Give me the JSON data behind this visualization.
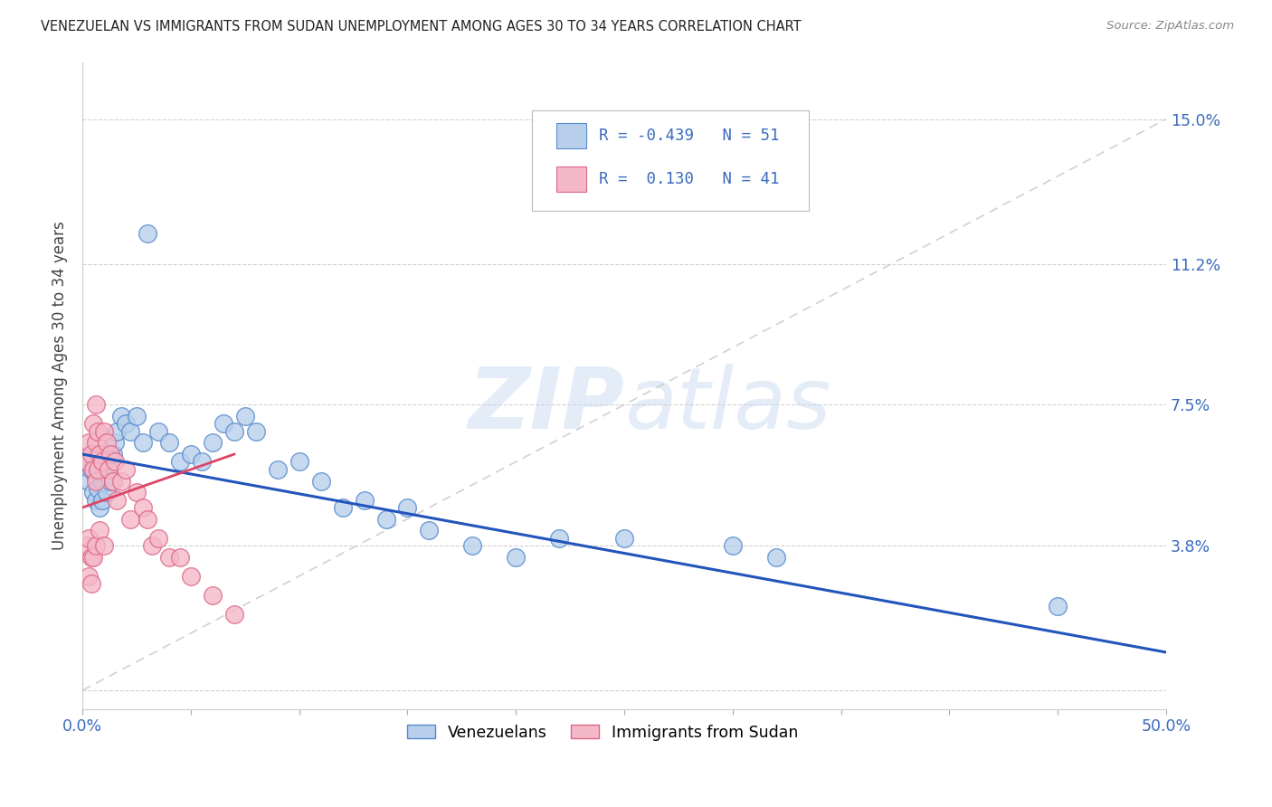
{
  "title": "VENEZUELAN VS IMMIGRANTS FROM SUDAN UNEMPLOYMENT AMONG AGES 30 TO 34 YEARS CORRELATION CHART",
  "source": "Source: ZipAtlas.com",
  "ylabel": "Unemployment Among Ages 30 to 34 years",
  "xlim": [
    0.0,
    0.5
  ],
  "ylim": [
    -0.005,
    0.165
  ],
  "yticks": [
    0.0,
    0.038,
    0.075,
    0.112,
    0.15
  ],
  "ytick_labels": [
    "",
    "3.8%",
    "7.5%",
    "11.2%",
    "15.0%"
  ],
  "xticks": [
    0.0,
    0.05,
    0.1,
    0.15,
    0.2,
    0.25,
    0.3,
    0.35,
    0.4,
    0.45,
    0.5
  ],
  "xtick_labels": [
    "0.0%",
    "",
    "",
    "",
    "",
    "",
    "",
    "",
    "",
    "",
    "50.0%"
  ],
  "venezuelan_color": "#b8d0eb",
  "sudan_color": "#f5b8c8",
  "venezuelan_edge": "#5588cc",
  "sudan_edge": "#dd6688",
  "trend_blue": "#2255bb",
  "trend_pink": "#dd4466",
  "trend_dashed_color": "#cccccc",
  "legend_R_venezuela": "-0.439",
  "legend_N_venezuela": "51",
  "legend_R_sudan": "0.130",
  "legend_N_sudan": "41",
  "venezuelan_x": [
    0.003,
    0.004,
    0.005,
    0.005,
    0.006,
    0.006,
    0.007,
    0.007,
    0.008,
    0.008,
    0.009,
    0.009,
    0.01,
    0.01,
    0.011,
    0.012,
    0.013,
    0.014,
    0.015,
    0.016,
    0.018,
    0.02,
    0.022,
    0.025,
    0.028,
    0.03,
    0.035,
    0.04,
    0.045,
    0.05,
    0.055,
    0.06,
    0.065,
    0.07,
    0.075,
    0.08,
    0.09,
    0.1,
    0.11,
    0.12,
    0.13,
    0.14,
    0.15,
    0.16,
    0.18,
    0.2,
    0.22,
    0.25,
    0.3,
    0.32,
    0.45
  ],
  "venezuelan_y": [
    0.055,
    0.058,
    0.06,
    0.052,
    0.05,
    0.056,
    0.053,
    0.058,
    0.048,
    0.062,
    0.05,
    0.055,
    0.057,
    0.06,
    0.052,
    0.058,
    0.055,
    0.062,
    0.065,
    0.068,
    0.072,
    0.07,
    0.068,
    0.072,
    0.065,
    0.12,
    0.068,
    0.065,
    0.06,
    0.062,
    0.06,
    0.065,
    0.07,
    0.068,
    0.072,
    0.068,
    0.058,
    0.06,
    0.055,
    0.048,
    0.05,
    0.045,
    0.048,
    0.042,
    0.038,
    0.035,
    0.04,
    0.04,
    0.038,
    0.035,
    0.022
  ],
  "sudan_x": [
    0.002,
    0.002,
    0.003,
    0.003,
    0.003,
    0.004,
    0.004,
    0.004,
    0.005,
    0.005,
    0.005,
    0.006,
    0.006,
    0.006,
    0.006,
    0.007,
    0.007,
    0.008,
    0.008,
    0.009,
    0.01,
    0.01,
    0.011,
    0.012,
    0.013,
    0.014,
    0.015,
    0.016,
    0.018,
    0.02,
    0.022,
    0.025,
    0.028,
    0.03,
    0.032,
    0.035,
    0.04,
    0.045,
    0.05,
    0.06,
    0.07
  ],
  "sudan_y": [
    0.06,
    0.038,
    0.065,
    0.04,
    0.03,
    0.062,
    0.035,
    0.028,
    0.07,
    0.058,
    0.035,
    0.075,
    0.065,
    0.055,
    0.038,
    0.068,
    0.058,
    0.062,
    0.042,
    0.06,
    0.068,
    0.038,
    0.065,
    0.058,
    0.062,
    0.055,
    0.06,
    0.05,
    0.055,
    0.058,
    0.045,
    0.052,
    0.048,
    0.045,
    0.038,
    0.04,
    0.035,
    0.035,
    0.03,
    0.025,
    0.02
  ],
  "watermark_zip": "ZIP",
  "watermark_atlas": "atlas",
  "background_color": "#ffffff"
}
